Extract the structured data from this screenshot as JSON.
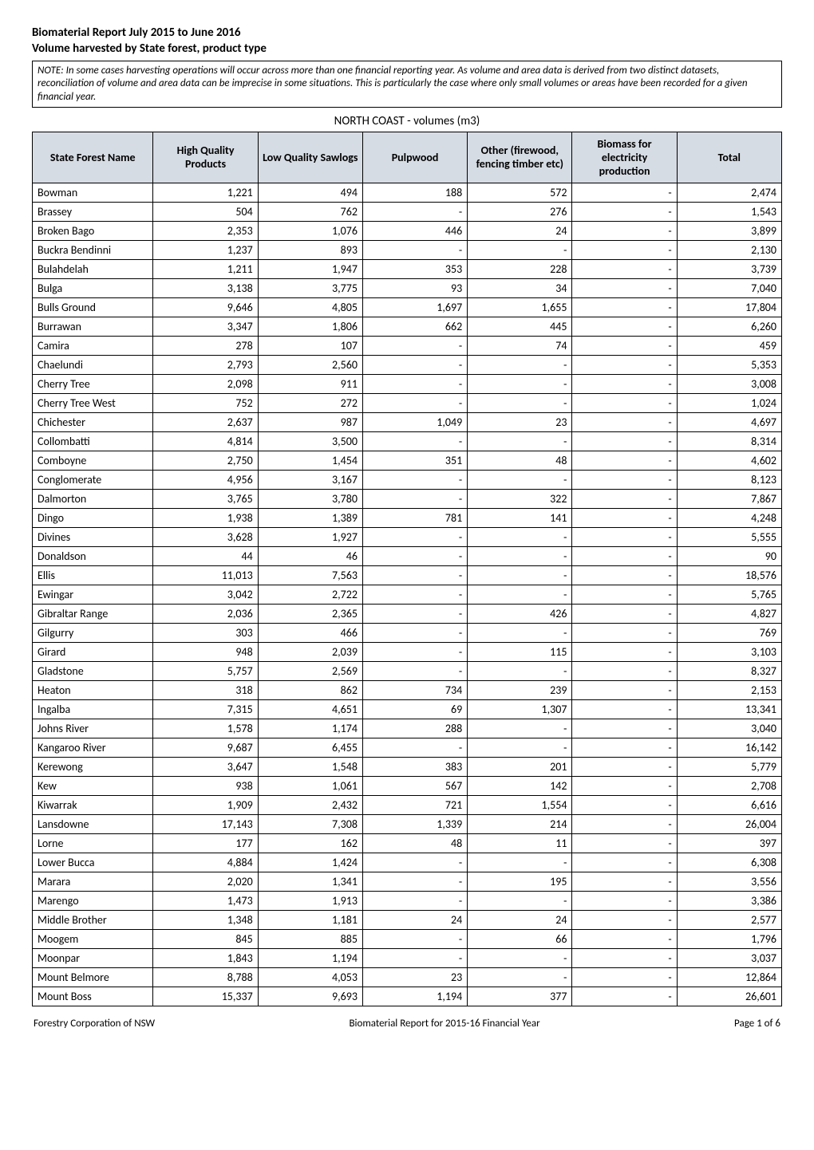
{
  "header": {
    "title": "Biomaterial Report July 2015 to June 2016",
    "subtitle": "Volume harvested by State forest, product type",
    "note": "NOTE: In some cases harvesting operations will occur across more than one financial reporting year. As volume and area data is derived from two distinct datasets, reconciliation of volume and area data can be imprecise in some situations. This is particularly the case where only small volumes or areas have been recorded for a given financial year.",
    "region_title": "NORTH COAST - volumes (m3)"
  },
  "table": {
    "columns": [
      "State Forest Name",
      "High Quality Products",
      "Low Quality Sawlogs",
      "Pulpwood",
      "Other (firewood, fencing timber etc)",
      "Biomass for electricity production",
      "Total"
    ],
    "header_bg": "#d6dce4",
    "border_color": "#000000",
    "rows": [
      {
        "name": "Bowman",
        "hq": "1,221",
        "lq": "494",
        "pw": "188",
        "oth": "572",
        "bio": "-",
        "tot": "2,474"
      },
      {
        "name": "Brassey",
        "hq": "504",
        "lq": "762",
        "pw": "-",
        "oth": "276",
        "bio": "-",
        "tot": "1,543"
      },
      {
        "name": "Broken Bago",
        "hq": "2,353",
        "lq": "1,076",
        "pw": "446",
        "oth": "24",
        "bio": "-",
        "tot": "3,899"
      },
      {
        "name": "Buckra Bendinni",
        "hq": "1,237",
        "lq": "893",
        "pw": "-",
        "oth": "-",
        "bio": "-",
        "tot": "2,130"
      },
      {
        "name": "Bulahdelah",
        "hq": "1,211",
        "lq": "1,947",
        "pw": "353",
        "oth": "228",
        "bio": "-",
        "tot": "3,739"
      },
      {
        "name": "Bulga",
        "hq": "3,138",
        "lq": "3,775",
        "pw": "93",
        "oth": "34",
        "bio": "-",
        "tot": "7,040"
      },
      {
        "name": "Bulls Ground",
        "hq": "9,646",
        "lq": "4,805",
        "pw": "1,697",
        "oth": "1,655",
        "bio": "-",
        "tot": "17,804"
      },
      {
        "name": "Burrawan",
        "hq": "3,347",
        "lq": "1,806",
        "pw": "662",
        "oth": "445",
        "bio": "-",
        "tot": "6,260"
      },
      {
        "name": "Camira",
        "hq": "278",
        "lq": "107",
        "pw": "-",
        "oth": "74",
        "bio": "-",
        "tot": "459"
      },
      {
        "name": "Chaelundi",
        "hq": "2,793",
        "lq": "2,560",
        "pw": "-",
        "oth": "-",
        "bio": "-",
        "tot": "5,353"
      },
      {
        "name": "Cherry Tree",
        "hq": "2,098",
        "lq": "911",
        "pw": "-",
        "oth": "-",
        "bio": "-",
        "tot": "3,008"
      },
      {
        "name": "Cherry Tree West",
        "hq": "752",
        "lq": "272",
        "pw": "-",
        "oth": "-",
        "bio": "-",
        "tot": "1,024"
      },
      {
        "name": "Chichester",
        "hq": "2,637",
        "lq": "987",
        "pw": "1,049",
        "oth": "23",
        "bio": "-",
        "tot": "4,697"
      },
      {
        "name": "Collombatti",
        "hq": "4,814",
        "lq": "3,500",
        "pw": "-",
        "oth": "-",
        "bio": "-",
        "tot": "8,314"
      },
      {
        "name": "Comboyne",
        "hq": "2,750",
        "lq": "1,454",
        "pw": "351",
        "oth": "48",
        "bio": "-",
        "tot": "4,602"
      },
      {
        "name": "Conglomerate",
        "hq": "4,956",
        "lq": "3,167",
        "pw": "-",
        "oth": "-",
        "bio": "-",
        "tot": "8,123"
      },
      {
        "name": "Dalmorton",
        "hq": "3,765",
        "lq": "3,780",
        "pw": "-",
        "oth": "322",
        "bio": "-",
        "tot": "7,867"
      },
      {
        "name": "Dingo",
        "hq": "1,938",
        "lq": "1,389",
        "pw": "781",
        "oth": "141",
        "bio": "-",
        "tot": "4,248"
      },
      {
        "name": "Divines",
        "hq": "3,628",
        "lq": "1,927",
        "pw": "-",
        "oth": "-",
        "bio": "-",
        "tot": "5,555"
      },
      {
        "name": "Donaldson",
        "hq": "44",
        "lq": "46",
        "pw": "-",
        "oth": "-",
        "bio": "-",
        "tot": "90"
      },
      {
        "name": "Ellis",
        "hq": "11,013",
        "lq": "7,563",
        "pw": "-",
        "oth": "-",
        "bio": "-",
        "tot": "18,576"
      },
      {
        "name": "Ewingar",
        "hq": "3,042",
        "lq": "2,722",
        "pw": "-",
        "oth": "-",
        "bio": "-",
        "tot": "5,765"
      },
      {
        "name": "Gibraltar Range",
        "hq": "2,036",
        "lq": "2,365",
        "pw": "-",
        "oth": "426",
        "bio": "-",
        "tot": "4,827"
      },
      {
        "name": "Gilgurry",
        "hq": "303",
        "lq": "466",
        "pw": "-",
        "oth": "-",
        "bio": "-",
        "tot": "769"
      },
      {
        "name": "Girard",
        "hq": "948",
        "lq": "2,039",
        "pw": "-",
        "oth": "115",
        "bio": "-",
        "tot": "3,103"
      },
      {
        "name": "Gladstone",
        "hq": "5,757",
        "lq": "2,569",
        "pw": "-",
        "oth": "-",
        "bio": "-",
        "tot": "8,327"
      },
      {
        "name": "Heaton",
        "hq": "318",
        "lq": "862",
        "pw": "734",
        "oth": "239",
        "bio": "-",
        "tot": "2,153"
      },
      {
        "name": "Ingalba",
        "hq": "7,315",
        "lq": "4,651",
        "pw": "69",
        "oth": "1,307",
        "bio": "-",
        "tot": "13,341"
      },
      {
        "name": "Johns River",
        "hq": "1,578",
        "lq": "1,174",
        "pw": "288",
        "oth": "-",
        "bio": "-",
        "tot": "3,040"
      },
      {
        "name": "Kangaroo River",
        "hq": "9,687",
        "lq": "6,455",
        "pw": "-",
        "oth": "-",
        "bio": "-",
        "tot": "16,142"
      },
      {
        "name": "Kerewong",
        "hq": "3,647",
        "lq": "1,548",
        "pw": "383",
        "oth": "201",
        "bio": "-",
        "tot": "5,779"
      },
      {
        "name": "Kew",
        "hq": "938",
        "lq": "1,061",
        "pw": "567",
        "oth": "142",
        "bio": "-",
        "tot": "2,708"
      },
      {
        "name": "Kiwarrak",
        "hq": "1,909",
        "lq": "2,432",
        "pw": "721",
        "oth": "1,554",
        "bio": "-",
        "tot": "6,616"
      },
      {
        "name": "Lansdowne",
        "hq": "17,143",
        "lq": "7,308",
        "pw": "1,339",
        "oth": "214",
        "bio": "-",
        "tot": "26,004"
      },
      {
        "name": "Lorne",
        "hq": "177",
        "lq": "162",
        "pw": "48",
        "oth": "11",
        "bio": "-",
        "tot": "397"
      },
      {
        "name": "Lower Bucca",
        "hq": "4,884",
        "lq": "1,424",
        "pw": "-",
        "oth": "-",
        "bio": "-",
        "tot": "6,308"
      },
      {
        "name": "Marara",
        "hq": "2,020",
        "lq": "1,341",
        "pw": "-",
        "oth": "195",
        "bio": "-",
        "tot": "3,556"
      },
      {
        "name": "Marengo",
        "hq": "1,473",
        "lq": "1,913",
        "pw": "-",
        "oth": "-",
        "bio": "-",
        "tot": "3,386"
      },
      {
        "name": "Middle Brother",
        "hq": "1,348",
        "lq": "1,181",
        "pw": "24",
        "oth": "24",
        "bio": "-",
        "tot": "2,577"
      },
      {
        "name": "Moogem",
        "hq": "845",
        "lq": "885",
        "pw": "-",
        "oth": "66",
        "bio": "-",
        "tot": "1,796"
      },
      {
        "name": "Moonpar",
        "hq": "1,843",
        "lq": "1,194",
        "pw": "-",
        "oth": "-",
        "bio": "-",
        "tot": "3,037"
      },
      {
        "name": "Mount Belmore",
        "hq": "8,788",
        "lq": "4,053",
        "pw": "23",
        "oth": "-",
        "bio": "-",
        "tot": "12,864"
      },
      {
        "name": "Mount Boss",
        "hq": "15,337",
        "lq": "9,693",
        "pw": "1,194",
        "oth": "377",
        "bio": "-",
        "tot": "26,601"
      }
    ]
  },
  "footer": {
    "left": "Forestry Corporation of NSW",
    "center": "Biomaterial Report for 2015-16 Financial Year",
    "right": "Page 1 of 6"
  }
}
